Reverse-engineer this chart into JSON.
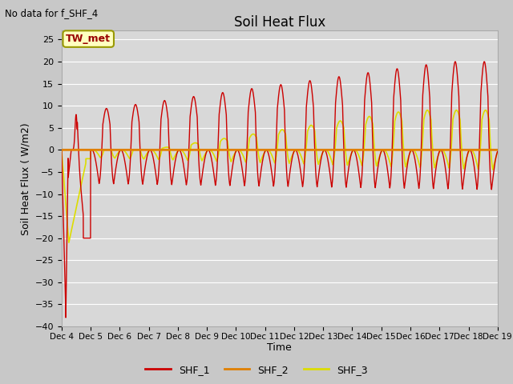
{
  "title": "Soil Heat Flux",
  "top_left_note": "No data for f_SHF_4",
  "ylabel": "Soil Heat Flux ( W/m2)",
  "xlabel": "Time",
  "ylim": [
    -40,
    27
  ],
  "yticks": [
    -40,
    -35,
    -30,
    -25,
    -20,
    -15,
    -10,
    -5,
    0,
    5,
    10,
    15,
    20,
    25
  ],
  "color_shf1": "#cc0000",
  "color_shf2": "#e08000",
  "color_shf3": "#dddd00",
  "legend_box_label": "TW_met",
  "legend_entries": [
    "SHF_1",
    "SHF_2",
    "SHF_3"
  ],
  "bg_color": "#c8c8c8",
  "plot_bg_color": "#d8d8d8",
  "start_day": 4,
  "n_days": 15
}
